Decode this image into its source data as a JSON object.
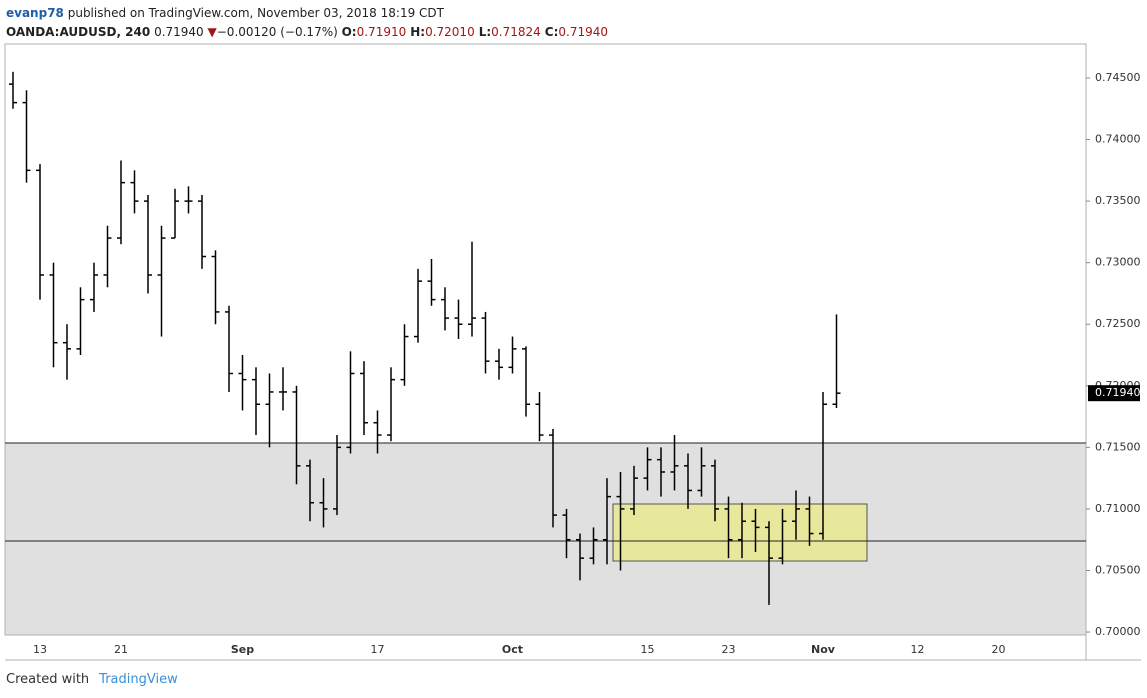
{
  "header": {
    "user": "evanp78",
    "published": "published on TradingView.com, November 03, 2018 18:19 CDT",
    "symbol": "OANDA:AUDUSD, 240",
    "price": "0.71940",
    "arrow": "▼",
    "change": "−0.00120 (−0.17%)",
    "ohlc": [
      {
        "label": "O:",
        "value": "0.71910"
      },
      {
        "label": "H:",
        "value": "0.72010"
      },
      {
        "label": "L:",
        "value": "0.71824"
      },
      {
        "label": "C:",
        "value": "0.71940"
      }
    ]
  },
  "chart_data": {
    "type": "ohlc",
    "color": "#000000",
    "categories": [
      null,
      null,
      "13",
      null,
      null,
      null,
      null,
      null,
      "21",
      null,
      null,
      null,
      null,
      null,
      null,
      null,
      null,
      "Sep",
      null,
      null,
      null,
      null,
      null,
      null,
      null,
      null,
      null,
      "17",
      null,
      null,
      null,
      null,
      null,
      null,
      null,
      null,
      null,
      "Oct",
      null,
      null,
      null,
      null,
      null,
      null,
      null,
      null,
      null,
      "15",
      null,
      null,
      null,
      null,
      null,
      "23",
      null,
      null,
      null,
      null,
      null,
      null,
      "Nov",
      null,
      null,
      null,
      null,
      null,
      null,
      "12",
      null,
      null,
      null,
      null,
      null,
      "20"
    ],
    "open": [
      0.7445,
      0.743,
      0.7375,
      0.729,
      0.7235,
      0.723,
      0.727,
      0.729,
      0.732,
      0.7365,
      0.735,
      0.729,
      0.732,
      0.735,
      0.735,
      0.7305,
      0.726,
      0.721,
      0.7205,
      0.7185,
      0.7195,
      0.7195,
      0.7135,
      0.7105,
      0.71,
      0.715,
      0.721,
      0.717,
      0.716,
      0.7205,
      0.724,
      0.7285,
      0.727,
      0.7255,
      0.725,
      0.7255,
      0.722,
      0.7215,
      0.723,
      0.7185,
      0.716,
      0.7095,
      0.7075,
      0.706,
      0.7075,
      0.711,
      0.71,
      0.7125,
      0.714,
      0.713,
      0.7135,
      0.7115,
      0.7135,
      0.71,
      0.7075,
      0.709,
      0.7085,
      0.706,
      0.709,
      0.71,
      0.708,
      0.7185,
      null,
      null,
      null,
      null,
      null,
      null,
      null,
      null,
      null,
      null,
      null,
      null
    ],
    "high": [
      0.7455,
      0.744,
      0.738,
      0.73,
      0.725,
      0.728,
      0.73,
      0.733,
      0.7383,
      0.7375,
      0.7355,
      0.733,
      0.736,
      0.7362,
      0.7355,
      0.731,
      0.7265,
      0.7225,
      0.7215,
      0.721,
      0.7215,
      0.72,
      0.714,
      0.7125,
      0.716,
      0.7228,
      0.722,
      0.718,
      0.7215,
      0.725,
      0.7295,
      0.7303,
      0.728,
      0.727,
      0.7317,
      0.726,
      0.723,
      0.724,
      0.7232,
      0.7195,
      0.7165,
      0.71,
      0.708,
      0.7085,
      0.7125,
      0.713,
      0.7135,
      0.715,
      0.715,
      0.716,
      0.7145,
      0.715,
      0.714,
      0.711,
      0.7105,
      0.71,
      0.709,
      0.71,
      0.7115,
      0.711,
      0.7195,
      0.7258,
      null,
      null,
      null,
      null,
      null,
      null,
      null,
      null,
      null,
      null,
      null,
      null
    ],
    "low": [
      0.7425,
      0.7365,
      0.727,
      0.7215,
      0.7205,
      0.7225,
      0.726,
      0.728,
      0.7315,
      0.734,
      0.7275,
      0.724,
      0.732,
      0.734,
      0.7295,
      0.725,
      0.7195,
      0.718,
      0.716,
      0.715,
      0.718,
      0.712,
      0.709,
      0.7085,
      0.7095,
      0.7145,
      0.716,
      0.7145,
      0.7155,
      0.72,
      0.7235,
      0.7265,
      0.7245,
      0.7238,
      0.724,
      0.721,
      0.7205,
      0.721,
      0.7175,
      0.7155,
      0.7085,
      0.706,
      0.7042,
      0.7055,
      0.7055,
      0.705,
      0.7095,
      0.7115,
      0.711,
      0.7115,
      0.71,
      0.711,
      0.709,
      0.706,
      0.706,
      0.7065,
      0.7022,
      0.7055,
      0.7075,
      0.707,
      0.7075,
      0.7182,
      null,
      null,
      null,
      null,
      null,
      null,
      null,
      null,
      null,
      null,
      null,
      null
    ],
    "close": [
      0.743,
      0.7375,
      0.729,
      0.7235,
      0.723,
      0.727,
      0.729,
      0.732,
      0.7365,
      0.735,
      0.729,
      0.732,
      0.735,
      0.735,
      0.7305,
      0.726,
      0.721,
      0.7205,
      0.7185,
      0.7195,
      0.7195,
      0.7135,
      0.7105,
      0.71,
      0.715,
      0.721,
      0.717,
      0.716,
      0.7205,
      0.724,
      0.7285,
      0.727,
      0.7255,
      0.725,
      0.7255,
      0.722,
      0.7215,
      0.723,
      0.7185,
      0.716,
      0.7095,
      0.7075,
      0.706,
      0.7075,
      0.711,
      0.71,
      0.7125,
      0.714,
      0.713,
      0.7135,
      0.7115,
      0.7135,
      0.71,
      0.7075,
      0.709,
      0.7085,
      0.706,
      0.709,
      0.71,
      0.708,
      0.7185,
      0.7194,
      null,
      null,
      null,
      null,
      null,
      null,
      null,
      null,
      null,
      null,
      null,
      null
    ],
    "ylim": [
      0.69976,
      0.74776
    ],
    "yticks": [
      {
        "value": 0.7,
        "label": "0.70000"
      },
      {
        "value": 0.705,
        "label": "0.70500"
      },
      {
        "value": 0.71,
        "label": "0.71000"
      },
      {
        "value": 0.715,
        "label": "0.71500"
      },
      {
        "value": 0.72,
        "label": "0.72000"
      },
      {
        "value": 0.725,
        "label": "0.72500"
      },
      {
        "value": 0.73,
        "label": "0.73000"
      },
      {
        "value": 0.735,
        "label": "0.73500"
      },
      {
        "value": 0.74,
        "label": "0.74000"
      },
      {
        "value": 0.745,
        "label": "0.74500"
      }
    ],
    "last_price": {
      "value": 0.7194,
      "label": "0.71940"
    },
    "levels": [
      0.71535,
      0.70739
    ],
    "zone": [
      0.70577,
      0.7104
    ]
  },
  "footer": {
    "created": "Created with",
    "brand": "TradingView"
  }
}
